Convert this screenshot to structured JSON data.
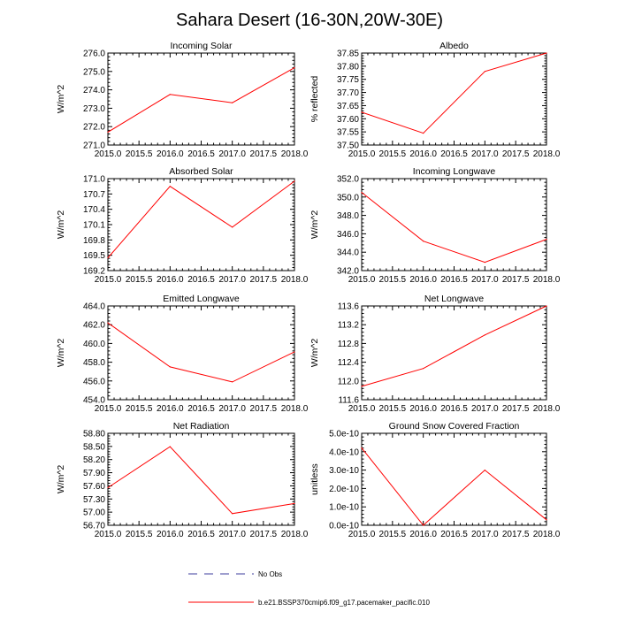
{
  "title": "Sahara Desert (16-30N,20W-30E)",
  "colors": {
    "series": "#ff0000",
    "obs": "#3d3d9c",
    "axis": "#000000"
  },
  "chart_data": [
    {
      "type": "line",
      "title": "Incoming Solar",
      "ylabel": "W/m^2",
      "xlim": [
        2015.0,
        2018.0
      ],
      "ylim": [
        271.0,
        276.0
      ],
      "x": [
        2015,
        2016,
        2017,
        2018
      ],
      "values": [
        271.7,
        273.75,
        273.3,
        275.2
      ],
      "xticks": [
        "2015.0",
        "2015.5",
        "2016.0",
        "2016.5",
        "2017.0",
        "2017.5",
        "2018.0"
      ],
      "yticks": [
        "271.0",
        "272.0",
        "273.0",
        "274.0",
        "275.0",
        "276.0"
      ]
    },
    {
      "type": "line",
      "title": "Albedo",
      "ylabel": "% reflected",
      "xlim": [
        2015.0,
        2018.0
      ],
      "ylim": [
        37.5,
        37.85
      ],
      "x": [
        2015,
        2016,
        2017,
        2018
      ],
      "values": [
        37.625,
        37.545,
        37.78,
        37.85
      ],
      "xticks": [
        "2015.0",
        "2015.5",
        "2016.0",
        "2016.5",
        "2017.0",
        "2017.5",
        "2018.0"
      ],
      "yticks": [
        "37.50",
        "37.55",
        "37.60",
        "37.65",
        "37.70",
        "37.75",
        "37.80",
        "37.85"
      ]
    },
    {
      "type": "line",
      "title": "Absorbed Solar",
      "ylabel": "W/m^2",
      "xlim": [
        2015.0,
        2018.0
      ],
      "ylim": [
        169.2,
        171.0
      ],
      "x": [
        2015,
        2016,
        2017,
        2018
      ],
      "values": [
        169.45,
        170.85,
        170.05,
        170.95
      ],
      "xticks": [
        "2015.0",
        "2015.5",
        "2016.0",
        "2016.5",
        "2017.0",
        "2017.5",
        "2018.0"
      ],
      "yticks": [
        "169.2",
        "169.5",
        "169.8",
        "170.1",
        "170.4",
        "170.7",
        "171.0"
      ]
    },
    {
      "type": "line",
      "title": "Incoming Longwave",
      "ylabel": "W/m^2",
      "xlim": [
        2015.0,
        2018.0
      ],
      "ylim": [
        342.0,
        352.0
      ],
      "x": [
        2015,
        2016,
        2017,
        2018
      ],
      "values": [
        350.5,
        345.2,
        342.9,
        345.4
      ],
      "xticks": [
        "2015.0",
        "2015.5",
        "2016.0",
        "2016.5",
        "2017.0",
        "2017.5",
        "2018.0"
      ],
      "yticks": [
        "342.0",
        "344.0",
        "346.0",
        "348.0",
        "350.0",
        "352.0"
      ]
    },
    {
      "type": "line",
      "title": "Emitted Longwave",
      "ylabel": "W/m^2",
      "xlim": [
        2015.0,
        2018.0
      ],
      "ylim": [
        454.0,
        464.0
      ],
      "x": [
        2015,
        2016,
        2017,
        2018
      ],
      "values": [
        462.2,
        457.5,
        455.9,
        459.1
      ],
      "xticks": [
        "2015.0",
        "2015.5",
        "2016.0",
        "2016.5",
        "2017.0",
        "2017.5",
        "2018.0"
      ],
      "yticks": [
        "454.0",
        "456.0",
        "458.0",
        "460.0",
        "462.0",
        "464.0"
      ]
    },
    {
      "type": "line",
      "title": "Net Longwave",
      "ylabel": "W/m^2",
      "xlim": [
        2015.0,
        2018.0
      ],
      "ylim": [
        111.6,
        113.7
      ],
      "x": [
        2015,
        2016,
        2017,
        2018
      ],
      "values": [
        111.9,
        112.3,
        113.05,
        113.7
      ],
      "xticks": [
        "2015.0",
        "2015.5",
        "2016.0",
        "2016.5",
        "2017.0",
        "2017.5",
        "2018.0"
      ],
      "yticks": [
        "111.6",
        "112.0",
        "112.4",
        "112.8",
        "113.2",
        "113.6"
      ]
    },
    {
      "type": "line",
      "title": "Net Radiation",
      "ylabel": "W/m^2",
      "xlim": [
        2015.0,
        2018.0
      ],
      "ylim": [
        56.7,
        58.9
      ],
      "x": [
        2015,
        2016,
        2017,
        2018
      ],
      "values": [
        57.6,
        58.58,
        56.98,
        57.22
      ],
      "xticks": [
        "2015.0",
        "2015.5",
        "2016.0",
        "2016.5",
        "2017.0",
        "2017.5",
        "2018.0"
      ],
      "yticks": [
        "56.70",
        "57.00",
        "57.30",
        "57.60",
        "57.90",
        "58.20",
        "58.50",
        "58.80"
      ]
    },
    {
      "type": "line",
      "title": "Ground Snow Covered Fraction",
      "ylabel": "unitless",
      "xlim": [
        2015.0,
        2018.0
      ],
      "ylim": [
        0,
        5e-10
      ],
      "x": [
        2015,
        2016,
        2017,
        2018
      ],
      "values": [
        4.2e-10,
        0.0,
        3e-10,
        3e-11
      ],
      "xticks": [
        "2015.0",
        "2015.5",
        "2016.0",
        "2016.5",
        "2017.0",
        "2017.5",
        "2018.0"
      ],
      "yticks": [
        "0.0e-10",
        "1.0e-10",
        "2.0e-10",
        "3.0e-10",
        "4.0e-10",
        "5.0e-10"
      ]
    }
  ],
  "legend": [
    {
      "label": "No Obs",
      "style": "dashed"
    },
    {
      "label": "b.e21.BSSP370cmip6.f09_g17.pacemaker_pacific.010",
      "style": "solid"
    }
  ]
}
